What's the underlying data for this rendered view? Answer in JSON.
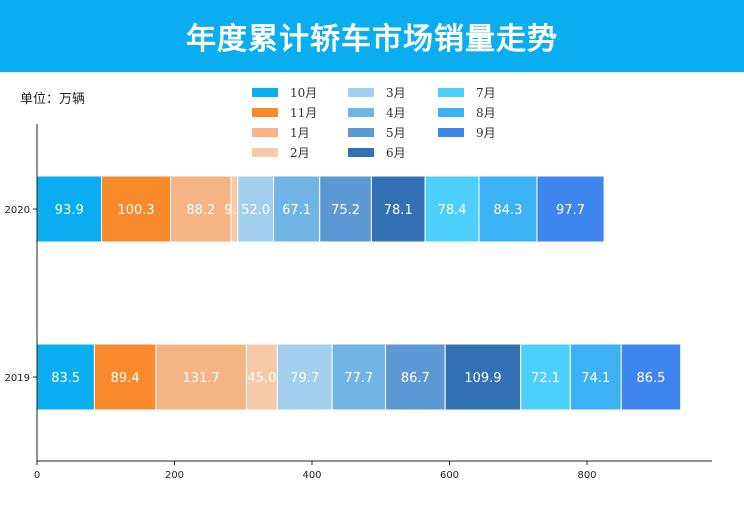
{
  "header": {
    "title": "年度累计轿车市场销量走势"
  },
  "unit_label": "单位：万辆",
  "chart_data": {
    "type": "bar",
    "orientation": "horizontal",
    "stacked": true,
    "categories": [
      "2019",
      "2020"
    ],
    "xlim": [
      0,
      980
    ],
    "xticks": [
      0,
      200,
      400,
      600,
      800
    ],
    "legend_placement": "top",
    "grid": false,
    "series": [
      {
        "name": "10月",
        "color": "#0aadef",
        "values": [
          83.5,
          93.9
        ]
      },
      {
        "name": "11月",
        "color": "#f98a2c",
        "values": [
          89.4,
          100.3
        ]
      },
      {
        "name": "1月",
        "color": "#f4b486",
        "values": [
          131.7,
          88.2
        ]
      },
      {
        "name": "2月",
        "color": "#f8c9a8",
        "values": [
          45.0,
          9.7
        ]
      },
      {
        "name": "3月",
        "color": "#a2cfec",
        "values": [
          79.7,
          52.0
        ]
      },
      {
        "name": "4月",
        "color": "#71b5e6",
        "values": [
          77.7,
          67.1
        ]
      },
      {
        "name": "5月",
        "color": "#5d98d4",
        "values": [
          86.7,
          75.2
        ]
      },
      {
        "name": "6月",
        "color": "#3272b4",
        "values": [
          109.9,
          78.1
        ]
      },
      {
        "name": "7月",
        "color": "#4cd0fb",
        "values": [
          72.1,
          78.4
        ]
      },
      {
        "name": "8月",
        "color": "#3cb2f4",
        "values": [
          74.1,
          84.3
        ]
      },
      {
        "name": "9月",
        "color": "#3e86ee",
        "values": [
          86.5,
          97.7
        ]
      }
    ]
  }
}
